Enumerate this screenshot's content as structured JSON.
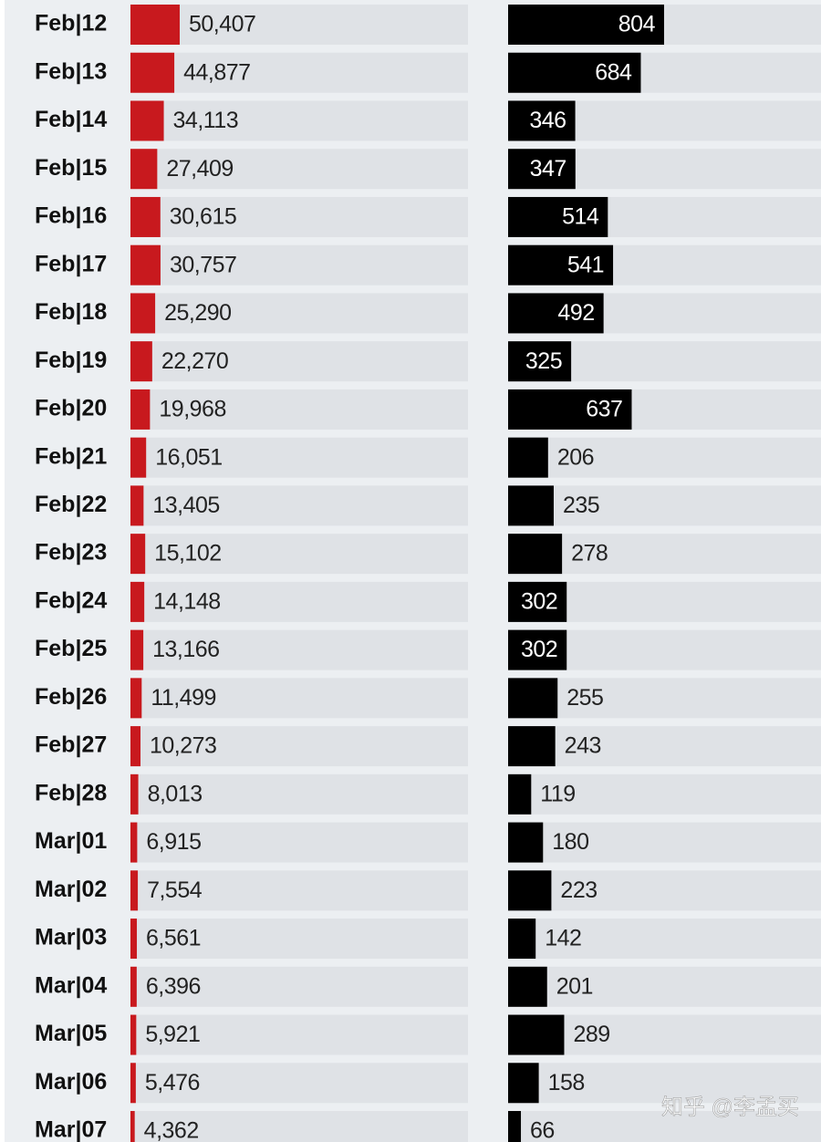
{
  "chart_data": {
    "type": "bar",
    "categories": [
      "Feb|12",
      "Feb|13",
      "Feb|14",
      "Feb|15",
      "Feb|16",
      "Feb|17",
      "Feb|18",
      "Feb|19",
      "Feb|20",
      "Feb|21",
      "Feb|22",
      "Feb|23",
      "Feb|24",
      "Feb|25",
      "Feb|26",
      "Feb|27",
      "Feb|28",
      "Mar|01",
      "Mar|02",
      "Mar|03",
      "Mar|04",
      "Mar|05",
      "Mar|06",
      "Mar|07"
    ],
    "series": [
      {
        "color": "#c8191e",
        "values": [
          50407,
          44877,
          34113,
          27409,
          30615,
          30757,
          25290,
          22270,
          19968,
          16051,
          13405,
          15102,
          14148,
          13166,
          11499,
          10273,
          8013,
          6915,
          7554,
          6561,
          6396,
          5921,
          5476,
          4362
        ],
        "value_labels": [
          "50,407",
          "44,877",
          "34,113",
          "27,409",
          "30,615",
          "30,757",
          "25,290",
          "22,270",
          "19,968",
          "16,051",
          "13,405",
          "15,102",
          "14,148",
          "13,166",
          "11,499",
          "10,273",
          "8,013",
          "6,915",
          "7,554",
          "6,561",
          "6,396",
          "5,921",
          "5,476",
          "4,362"
        ]
      },
      {
        "color": "#000000",
        "values": [
          804,
          684,
          346,
          347,
          514,
          541,
          492,
          325,
          637,
          206,
          235,
          278,
          302,
          302,
          255,
          243,
          119,
          180,
          223,
          142,
          201,
          289,
          158,
          66
        ]
      }
    ]
  },
  "watermark": "知乎 @李孟买"
}
